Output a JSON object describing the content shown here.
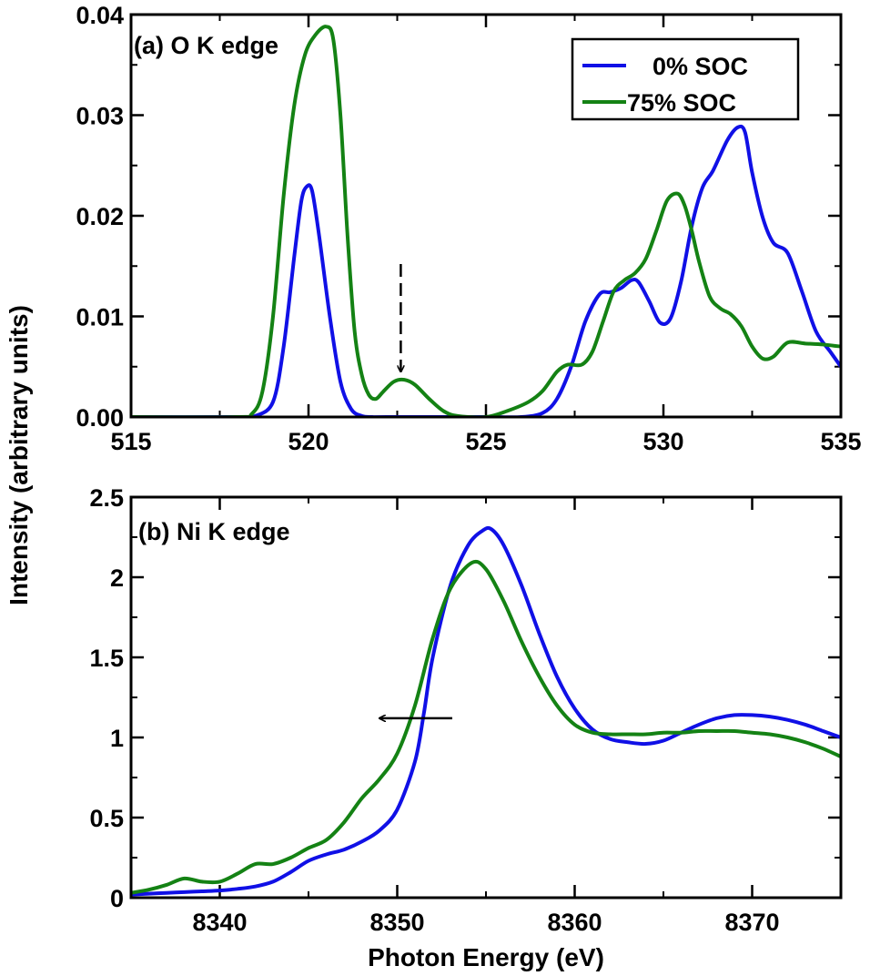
{
  "figure": {
    "ylabel": "Intensity (arbitrary units)",
    "xlabel": "Photon Energy (eV)"
  },
  "colors": {
    "blue": "#1010e6",
    "green": "#148214"
  },
  "chart_data": [
    {
      "type": "line",
      "panel_label": "(a) O K edge",
      "xlim": [
        515,
        535
      ],
      "ylim": [
        0,
        0.04
      ],
      "xticks": [
        515,
        520,
        525,
        530,
        535
      ],
      "yticks": [
        0,
        0.01,
        0.02,
        0.03,
        0.04
      ],
      "xtick_labels": [
        "515",
        "520",
        "525",
        "530",
        "535"
      ],
      "ytick_labels": [
        "0.00",
        "0.01",
        "0.02",
        "0.03",
        "0.04"
      ],
      "legend": {
        "position": "top-right",
        "entries": [
          "0% SOC",
          "75% SOC"
        ]
      },
      "annotation": {
        "type": "dashed-down-arrow",
        "x": 522.6,
        "y_from": 0.0152,
        "y_to": 0.0045
      },
      "series": [
        {
          "name": "0% SOC",
          "color": "#1010e6",
          "x": [
            515,
            518,
            518.5,
            519.0,
            519.3,
            519.6,
            519.8,
            519.95,
            520.1,
            520.3,
            520.6,
            520.9,
            521.2,
            521.5,
            521.8,
            522.2,
            525,
            526.0,
            526.6,
            527.0,
            527.4,
            527.8,
            528.2,
            528.5,
            528.8,
            529.1,
            529.3,
            529.6,
            529.9,
            530.2,
            530.5,
            530.8,
            531.1,
            531.4,
            531.8,
            532.1,
            532.3,
            532.5,
            532.8,
            533.1,
            533.5,
            533.9,
            534.3,
            534.7,
            535
          ],
          "y": [
            0,
            0,
            0.0001,
            0.0015,
            0.007,
            0.016,
            0.0215,
            0.0229,
            0.0225,
            0.018,
            0.01,
            0.0035,
            0.0008,
            0.0001,
            0,
            0,
            0,
            0,
            0.0004,
            0.0018,
            0.005,
            0.0095,
            0.0122,
            0.0124,
            0.0128,
            0.0136,
            0.0134,
            0.0115,
            0.0094,
            0.0098,
            0.0135,
            0.019,
            0.0228,
            0.0245,
            0.0275,
            0.0288,
            0.0283,
            0.0243,
            0.0198,
            0.0173,
            0.0163,
            0.0125,
            0.0085,
            0.0065,
            0.005
          ]
        },
        {
          "name": "75% SOC",
          "color": "#148214",
          "x": [
            515,
            518,
            518.4,
            518.7,
            519.0,
            519.3,
            519.6,
            519.9,
            520.2,
            520.5,
            520.7,
            520.9,
            521.1,
            521.3,
            521.5,
            521.7,
            521.9,
            522.1,
            522.4,
            522.7,
            523.0,
            523.4,
            523.8,
            524.2,
            525,
            525.6,
            526.2,
            526.6,
            527.0,
            527.3,
            527.7,
            528.0,
            528.3,
            528.6,
            528.9,
            529.2,
            529.5,
            529.8,
            530.1,
            530.4,
            530.6,
            530.8,
            531.0,
            531.3,
            531.6,
            531.9,
            532.2,
            532.5,
            532.8,
            533.1,
            533.5,
            534.0,
            534.5,
            535
          ],
          "y": [
            0,
            0,
            0.0003,
            0.0025,
            0.01,
            0.022,
            0.031,
            0.036,
            0.038,
            0.0388,
            0.0375,
            0.03,
            0.018,
            0.0085,
            0.0042,
            0.0022,
            0.0018,
            0.0025,
            0.0035,
            0.0037,
            0.0032,
            0.0018,
            0.0006,
            0.0001,
            0,
            0.0006,
            0.0015,
            0.0026,
            0.0045,
            0.0052,
            0.0052,
            0.0065,
            0.0095,
            0.0125,
            0.0136,
            0.0143,
            0.0157,
            0.0185,
            0.0215,
            0.0222,
            0.021,
            0.0185,
            0.0155,
            0.012,
            0.0108,
            0.0102,
            0.009,
            0.007,
            0.0058,
            0.006,
            0.0074,
            0.0073,
            0.0072,
            0.007
          ]
        }
      ]
    },
    {
      "type": "line",
      "panel_label": "(b) Ni K edge",
      "xlim": [
        8335,
        8375
      ],
      "ylim": [
        0,
        2.5
      ],
      "xticks": [
        8340,
        8350,
        8360,
        8370
      ],
      "yticks": [
        0,
        0.5,
        1,
        1.5,
        2,
        2.5
      ],
      "xtick_labels": [
        "8340",
        "8350",
        "8360",
        "8370"
      ],
      "ytick_labels": [
        "0",
        "0.5",
        "1",
        "1.5",
        "2",
        "2.5"
      ],
      "annotation": {
        "type": "left-arrow",
        "x_from": 8342.5,
        "x_to": 8334.2,
        "y": 1.12
      },
      "series": [
        {
          "name": "0% SOC",
          "color": "#1010e6",
          "x": [
            8335,
            8336,
            8337,
            8338,
            8339,
            8340,
            8341,
            8342,
            8343,
            8344,
            8345,
            8346,
            8347,
            8348,
            8349,
            8350,
            8351,
            8351.5,
            8352,
            8353,
            8354,
            8354.8,
            8355.3,
            8356,
            8357,
            8358,
            8359,
            8360,
            8361,
            8362,
            8363,
            8364,
            8365,
            8366,
            8367,
            8368,
            8369,
            8370,
            8371,
            8372,
            8373,
            8374,
            8375
          ],
          "y": [
            0.02,
            0.025,
            0.03,
            0.035,
            0.04,
            0.045,
            0.055,
            0.07,
            0.1,
            0.16,
            0.23,
            0.27,
            0.3,
            0.35,
            0.42,
            0.55,
            0.85,
            1.15,
            1.5,
            1.95,
            2.2,
            2.29,
            2.3,
            2.2,
            1.95,
            1.65,
            1.38,
            1.18,
            1.05,
            0.99,
            0.97,
            0.96,
            0.98,
            1.03,
            1.08,
            1.12,
            1.14,
            1.14,
            1.13,
            1.11,
            1.08,
            1.04,
            1.0
          ]
        },
        {
          "name": "75% SOC",
          "color": "#148214",
          "x": [
            8335,
            8336,
            8337,
            8338,
            8339,
            8340,
            8341,
            8342,
            8343,
            8344,
            8345,
            8346,
            8347,
            8348,
            8349,
            8350,
            8351,
            8352,
            8353,
            8354.2,
            8355,
            8356,
            8357,
            8358,
            8359,
            8360,
            8361,
            8362,
            8363,
            8364,
            8365,
            8366,
            8367,
            8368,
            8369,
            8370,
            8371,
            8372,
            8373,
            8374,
            8375
          ],
          "y": [
            0.03,
            0.05,
            0.08,
            0.12,
            0.1,
            0.1,
            0.15,
            0.21,
            0.21,
            0.25,
            0.31,
            0.36,
            0.47,
            0.62,
            0.74,
            0.9,
            1.2,
            1.62,
            1.93,
            2.09,
            2.05,
            1.85,
            1.6,
            1.38,
            1.2,
            1.08,
            1.03,
            1.02,
            1.02,
            1.02,
            1.03,
            1.03,
            1.04,
            1.04,
            1.04,
            1.03,
            1.02,
            1.0,
            0.97,
            0.93,
            0.88
          ]
        }
      ]
    }
  ]
}
